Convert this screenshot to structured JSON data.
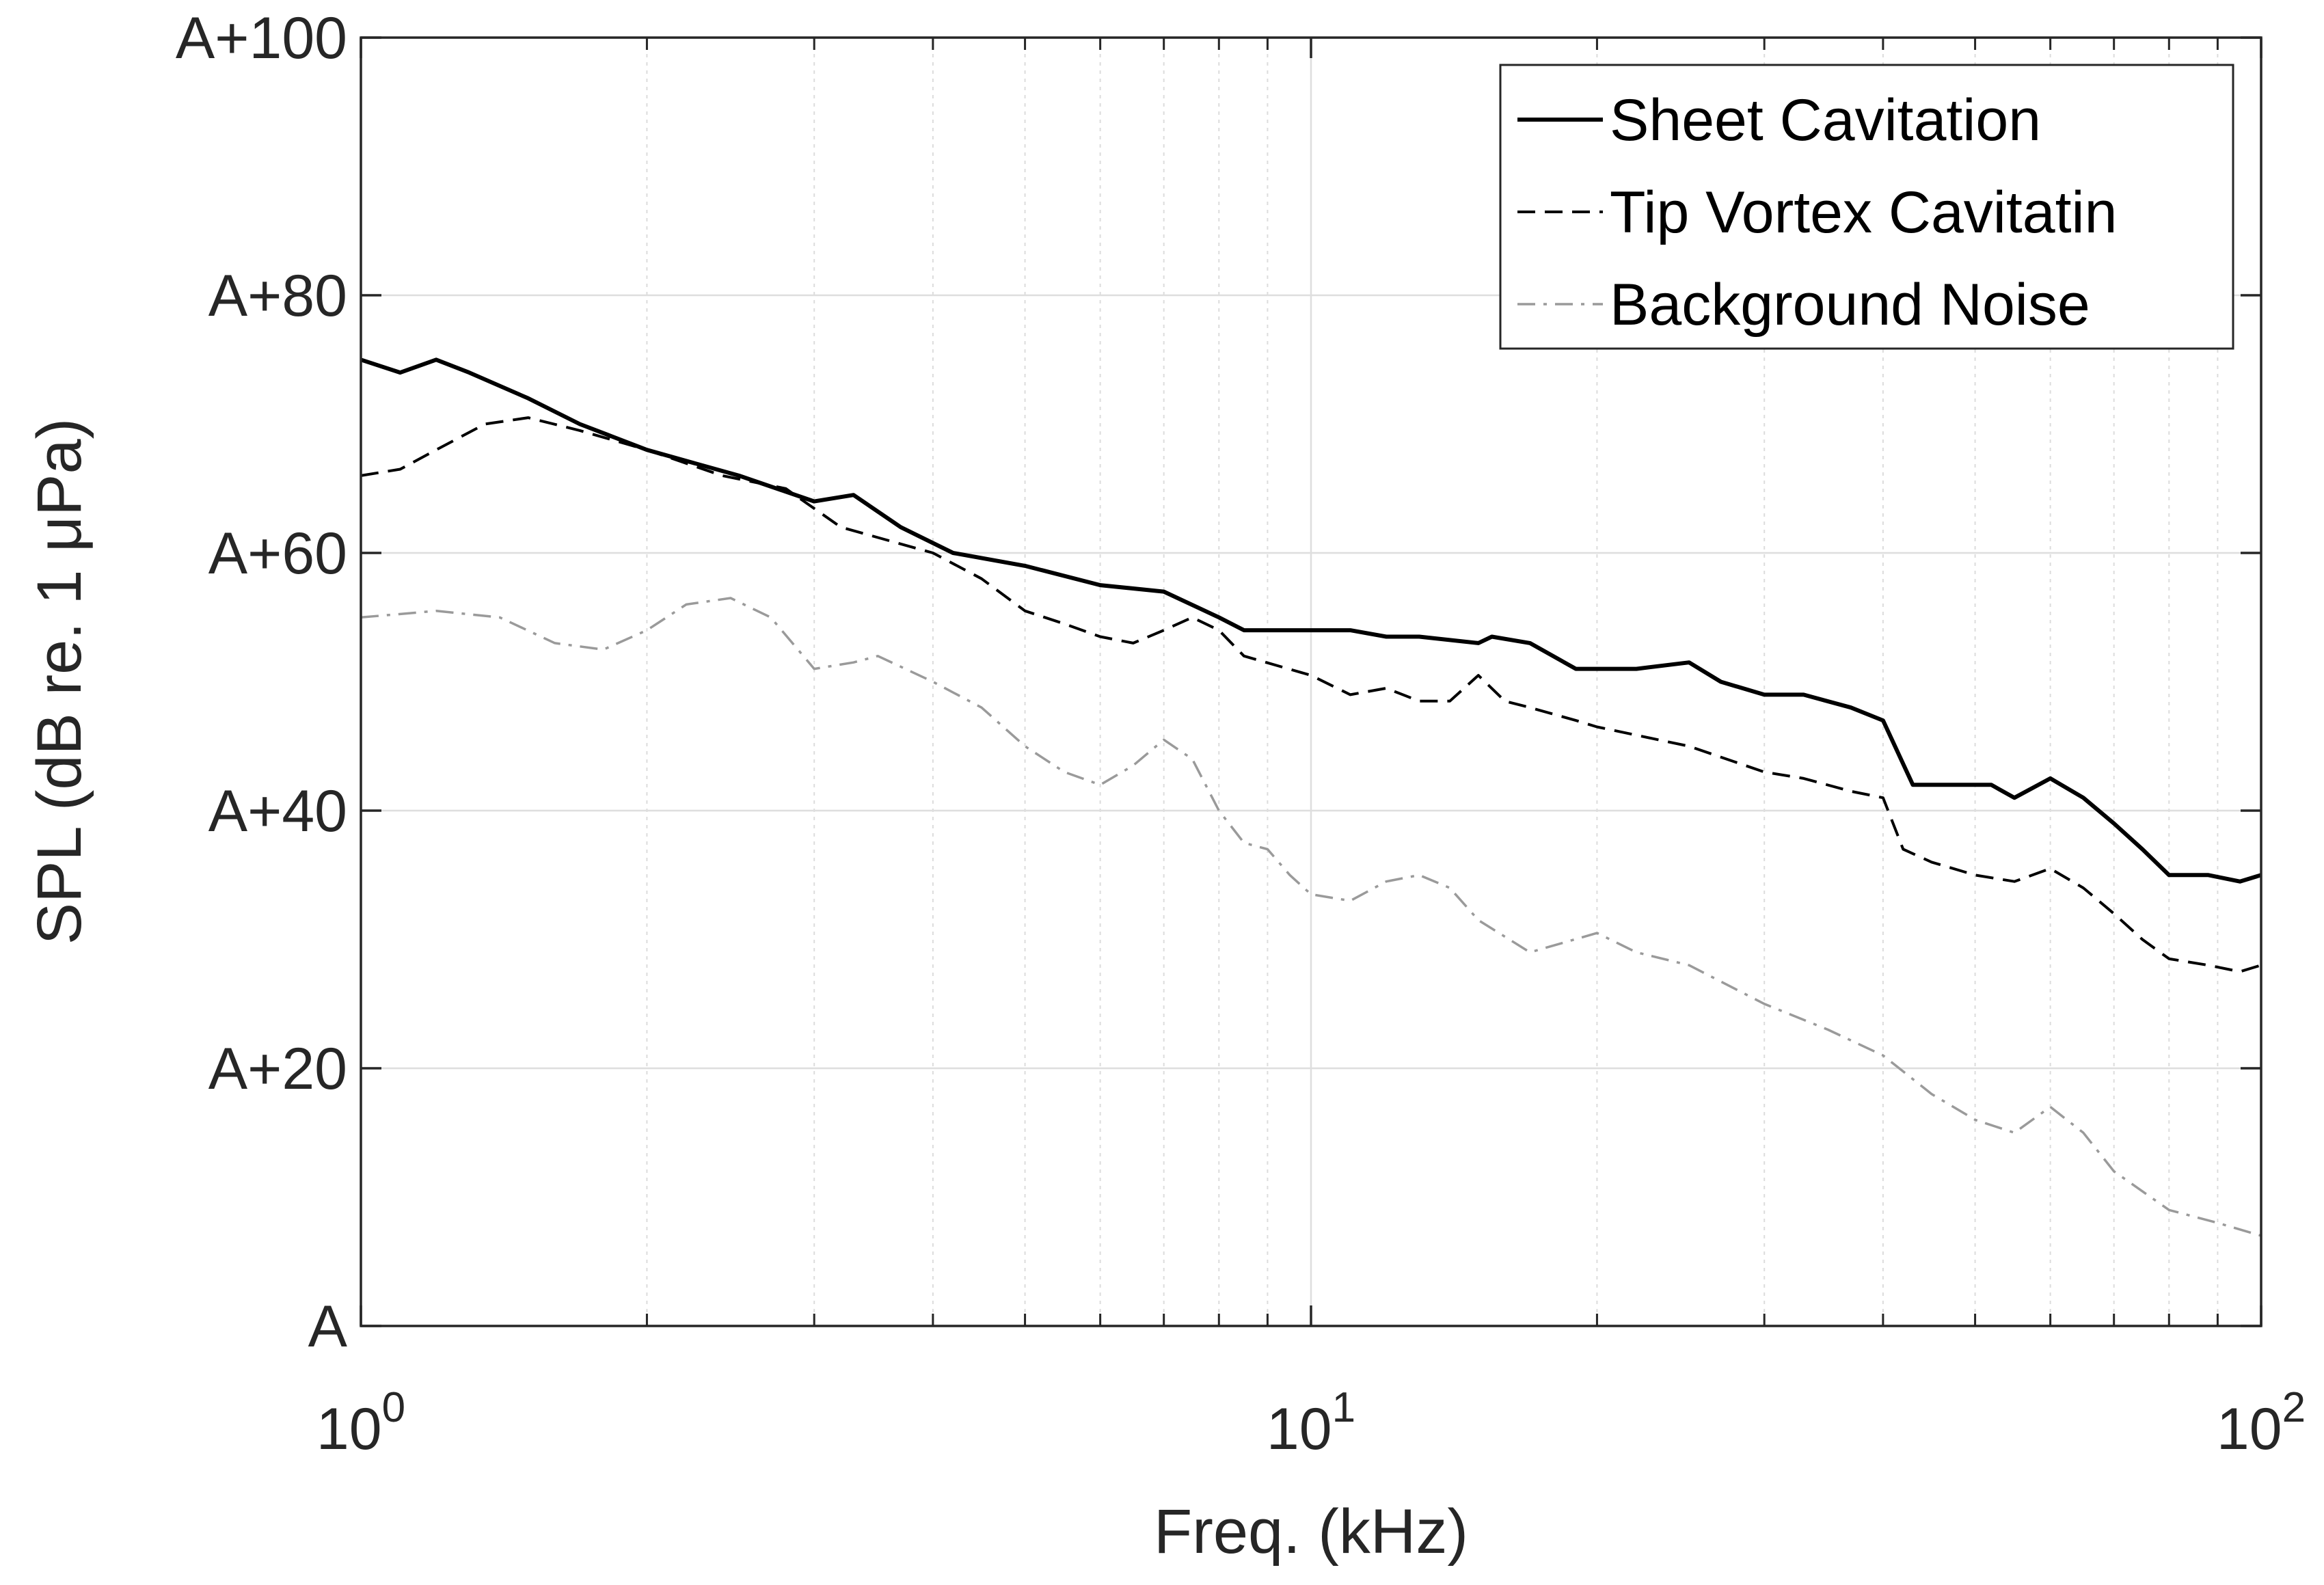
{
  "chart_data": {
    "type": "line",
    "xscale": "log",
    "xlabel": "Freq. (kHz)",
    "ylabel": "SPL (dB re. 1 μPa)",
    "xlim": [
      1,
      100
    ],
    "ylim": [
      0,
      100
    ],
    "grid": true,
    "legend_position": "top-right",
    "x_ticks": [
      {
        "value": 1,
        "base": "10",
        "exp": "0"
      },
      {
        "value": 10,
        "base": "10",
        "exp": "1"
      },
      {
        "value": 100,
        "base": "10",
        "exp": "2"
      }
    ],
    "y_ticks": [
      {
        "value": 0,
        "label": "A"
      },
      {
        "value": 20,
        "label": "A+20"
      },
      {
        "value": 40,
        "label": "A+40"
      },
      {
        "value": 60,
        "label": "A+60"
      },
      {
        "value": 80,
        "label": "A+80"
      },
      {
        "value": 100,
        "label": "A+100"
      }
    ],
    "series": [
      {
        "name": "Sheet Cavitation",
        "style": "solid",
        "color": "#000000",
        "points": [
          [
            1,
            75
          ],
          [
            1.1,
            74
          ],
          [
            1.2,
            75
          ],
          [
            1.3,
            74
          ],
          [
            1.5,
            72
          ],
          [
            1.7,
            70
          ],
          [
            2,
            68
          ],
          [
            2.5,
            66
          ],
          [
            3,
            64
          ],
          [
            3.3,
            64.5
          ],
          [
            3.7,
            62
          ],
          [
            4.2,
            60
          ],
          [
            5,
            59
          ],
          [
            6,
            57.5
          ],
          [
            7,
            57
          ],
          [
            8,
            55
          ],
          [
            8.5,
            54
          ],
          [
            10,
            54
          ],
          [
            11,
            54
          ],
          [
            12,
            53.5
          ],
          [
            13,
            53.5
          ],
          [
            15,
            53
          ],
          [
            15.5,
            53.5
          ],
          [
            17,
            53
          ],
          [
            19,
            51
          ],
          [
            22,
            51
          ],
          [
            25,
            51.5
          ],
          [
            27,
            50
          ],
          [
            30,
            49
          ],
          [
            33,
            49
          ],
          [
            37,
            48
          ],
          [
            40,
            47
          ],
          [
            43,
            42
          ],
          [
            48,
            42
          ],
          [
            52,
            42
          ],
          [
            55,
            41
          ],
          [
            60,
            42.5
          ],
          [
            65,
            41
          ],
          [
            70,
            39
          ],
          [
            75,
            37
          ],
          [
            80,
            35
          ],
          [
            88,
            35
          ],
          [
            95,
            34.5
          ],
          [
            100,
            35
          ]
        ]
      },
      {
        "name": "Tip Vortex Cavitatin",
        "style": "dashed",
        "color": "#000000",
        "points": [
          [
            1,
            66
          ],
          [
            1.1,
            66.5
          ],
          [
            1.2,
            68
          ],
          [
            1.35,
            70
          ],
          [
            1.5,
            70.5
          ],
          [
            1.7,
            69.5
          ],
          [
            2,
            68
          ],
          [
            2.4,
            66
          ],
          [
            2.8,
            65
          ],
          [
            3.2,
            62
          ],
          [
            4,
            60
          ],
          [
            4.5,
            58
          ],
          [
            5,
            55.5
          ],
          [
            5.5,
            54.5
          ],
          [
            6,
            53.5
          ],
          [
            6.5,
            53
          ],
          [
            7,
            54
          ],
          [
            7.5,
            55
          ],
          [
            8,
            54
          ],
          [
            8.5,
            52
          ],
          [
            10,
            50.5
          ],
          [
            11,
            49
          ],
          [
            12,
            49.5
          ],
          [
            13,
            48.5
          ],
          [
            14,
            48.5
          ],
          [
            15,
            50.5
          ],
          [
            16,
            48.5
          ],
          [
            17,
            48
          ],
          [
            19,
            47
          ],
          [
            20,
            46.5
          ],
          [
            25,
            45
          ],
          [
            30,
            43
          ],
          [
            33,
            42.5
          ],
          [
            37,
            41.5
          ],
          [
            40,
            41
          ],
          [
            42,
            37
          ],
          [
            45,
            36
          ],
          [
            50,
            35
          ],
          [
            55,
            34.5
          ],
          [
            60,
            35.5
          ],
          [
            65,
            34
          ],
          [
            70,
            32
          ],
          [
            75,
            30
          ],
          [
            80,
            28.5
          ],
          [
            88,
            28
          ],
          [
            95,
            27.5
          ],
          [
            100,
            28
          ]
        ]
      },
      {
        "name": "Background Noise",
        "style": "dashdot",
        "color": "#9a9a9a",
        "points": [
          [
            1,
            55
          ],
          [
            1.2,
            55.5
          ],
          [
            1.4,
            55
          ],
          [
            1.6,
            53
          ],
          [
            1.8,
            52.5
          ],
          [
            2,
            54
          ],
          [
            2.2,
            56
          ],
          [
            2.45,
            56.5
          ],
          [
            2.7,
            55
          ],
          [
            3,
            51
          ],
          [
            3.3,
            51.5
          ],
          [
            3.5,
            52
          ],
          [
            4,
            50
          ],
          [
            4.5,
            48
          ],
          [
            5,
            45
          ],
          [
            5.5,
            43
          ],
          [
            6,
            42
          ],
          [
            6.5,
            43.5
          ],
          [
            7,
            45.5
          ],
          [
            7.5,
            44
          ],
          [
            8,
            40
          ],
          [
            8.5,
            37.5
          ],
          [
            9,
            37
          ],
          [
            9.5,
            35
          ],
          [
            10,
            33.5
          ],
          [
            11,
            33
          ],
          [
            12,
            34.5
          ],
          [
            13,
            35
          ],
          [
            14,
            34
          ],
          [
            15,
            31.5
          ],
          [
            17,
            29
          ],
          [
            20,
            30.5
          ],
          [
            22,
            29
          ],
          [
            25,
            28
          ],
          [
            30,
            25
          ],
          [
            35,
            23
          ],
          [
            40,
            21
          ],
          [
            45,
            18
          ],
          [
            50,
            16
          ],
          [
            55,
            15
          ],
          [
            60,
            17
          ],
          [
            65,
            15
          ],
          [
            70,
            12
          ],
          [
            80,
            9
          ],
          [
            90,
            8
          ],
          [
            100,
            7
          ]
        ]
      }
    ]
  }
}
